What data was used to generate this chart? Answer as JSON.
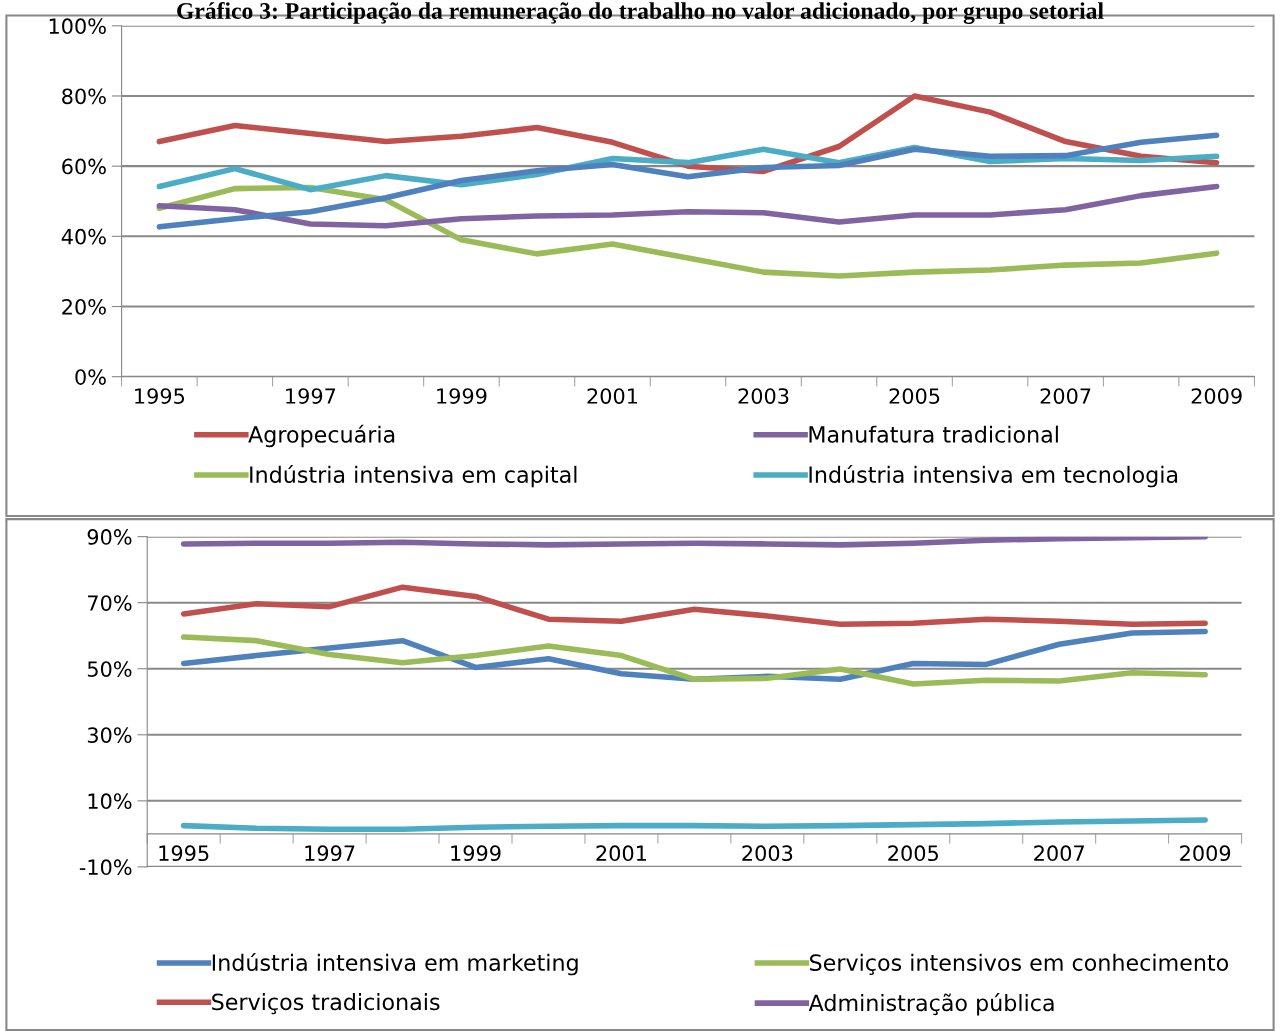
{
  "chart_data": [
    {
      "type": "line",
      "title": "Gráfico 3: Participação da remuneração do trabalho no valor adicionado, por grupo setorial",
      "categories": [
        "1995",
        null,
        "1997",
        null,
        "1999",
        null,
        "2001",
        null,
        "2003",
        null,
        "2005",
        null,
        "2007",
        null,
        "2009"
      ],
      "series": [
        {
          "name": "Agropecuária",
          "color": "#c0504d",
          "values": [
            67,
            71.6,
            69.3,
            67,
            68.5,
            71,
            66.8,
            60,
            58.5,
            65.6,
            80,
            75.4,
            67,
            62.8,
            61
          ]
        },
        {
          "name": "Indústria intensiva em capital",
          "color": "#9bbb59",
          "values": [
            48,
            53.6,
            53.9,
            50.4,
            39,
            35,
            37.8,
            33.8,
            29.8,
            28.7,
            29.8,
            30.4,
            31.8,
            32.4,
            35.2
          ]
        },
        {
          "name": "Manufatura tradicional",
          "color": "#8064a2",
          "values": [
            48.7,
            47.6,
            43.5,
            43,
            45,
            45.8,
            46.1,
            47,
            46.7,
            44.1,
            46.1,
            46.1,
            47.6,
            51.6,
            54.2
          ]
        },
        {
          "name": "Indústria intensiva em tecnologia",
          "color": "#4bacc6",
          "values": [
            54.2,
            59.3,
            53.3,
            57.3,
            54.7,
            57.6,
            62.2,
            61,
            64.8,
            61,
            65.3,
            61.3,
            62.2,
            61.6,
            62.8
          ]
        },
        {
          "color": "#4f81bd",
          "values": [
            42.7,
            45,
            47,
            51,
            55.9,
            58.7,
            60.5,
            57,
            59.6,
            60.2,
            64.8,
            62.8,
            63,
            66.8,
            68.8
          ]
        }
      ],
      "ylim": [
        0,
        100
      ],
      "yticks": [
        {
          "value": 0,
          "label": "0%"
        },
        {
          "value": 20,
          "label": "20%"
        },
        {
          "value": 40,
          "label": "40%"
        },
        {
          "value": 60,
          "label": "60%"
        },
        {
          "value": 80,
          "label": "80%"
        },
        {
          "value": 100,
          "label": "100%"
        }
      ],
      "grid": "y",
      "legend": "bottom",
      "marker": "none",
      "line_style": "solid"
    },
    {
      "type": "line",
      "categories": [
        "1995",
        null,
        "1997",
        null,
        "1999",
        null,
        "2001",
        null,
        "2003",
        null,
        "2005",
        null,
        "2007",
        null,
        "2009"
      ],
      "series": [
        {
          "name": "Indústria intensiva em marketing",
          "color": "#4f81bd",
          "values": [
            51.6,
            54,
            56.3,
            58.5,
            50.4,
            53,
            48.5,
            46.8,
            47.7,
            46.8,
            51.6,
            51.3,
            57.4,
            60.8,
            61.3
          ]
        },
        {
          "name": "Serviços tradicionais",
          "color": "#c0504d",
          "values": [
            66.6,
            69.7,
            68.8,
            74.7,
            71.9,
            65,
            64.4,
            68,
            66,
            63.5,
            63.8,
            65,
            64.4,
            63.5,
            63.8
          ]
        },
        {
          "name": "Serviços intensivos em conhecimento",
          "color": "#9bbb59",
          "values": [
            59.6,
            58.5,
            54.3,
            51.8,
            54,
            56.9,
            54,
            46.8,
            47.1,
            49.9,
            45.4,
            46.5,
            46.3,
            48.8,
            48.2
          ]
        },
        {
          "name": "Administração pública",
          "color": "#8064a2",
          "values": [
            87.8,
            88,
            88,
            88.3,
            87.8,
            87.5,
            87.8,
            88,
            87.8,
            87.5,
            88,
            88.9,
            89.4,
            89.7,
            90
          ]
        },
        {
          "color": "#4bacc6",
          "values": [
            2.5,
            1.7,
            1.4,
            1.4,
            2,
            2.3,
            2.5,
            2.5,
            2.3,
            2.5,
            2.8,
            3.1,
            3.6,
            3.9,
            4.2
          ]
        }
      ],
      "ylim": [
        -10,
        90
      ],
      "yticks": [
        {
          "value": -10,
          "label": "-10%"
        },
        {
          "value": 10,
          "label": "10%"
        },
        {
          "value": 30,
          "label": "30%"
        },
        {
          "value": 50,
          "label": "50%"
        },
        {
          "value": 70,
          "label": "70%"
        },
        {
          "value": 90,
          "label": "90%"
        }
      ],
      "grid": "y",
      "legend": "bottom",
      "marker": "none",
      "line_style": "solid"
    }
  ]
}
